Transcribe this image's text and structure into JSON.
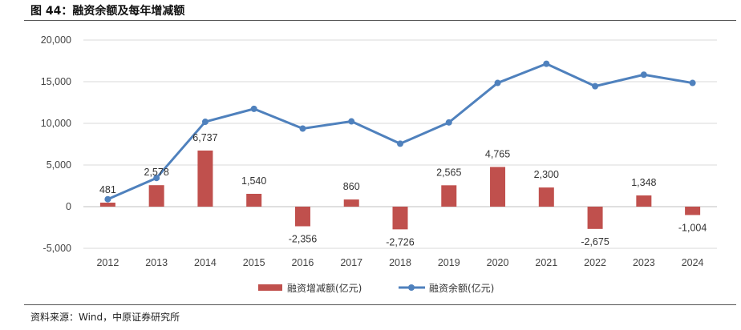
{
  "header": {
    "title": "图 44：融资余额及每年增减额"
  },
  "footer": {
    "source": "资料来源：Wind，中原证券研究所"
  },
  "colors": {
    "bar": "#c0504d",
    "line": "#4f81bd",
    "grid": "#d9d9d9",
    "axis": "#bfbfbf"
  },
  "chart_data": {
    "type": "bar+line",
    "categories": [
      "2012",
      "2013",
      "2014",
      "2015",
      "2016",
      "2017",
      "2018",
      "2019",
      "2020",
      "2021",
      "2022",
      "2023",
      "2024"
    ],
    "series": [
      {
        "name": "融资增减额(亿元)",
        "type": "bar",
        "values": [
          481,
          2578,
          6737,
          1540,
          -2356,
          860,
          -2726,
          2565,
          4765,
          2300,
          -2675,
          1348,
          -1004
        ],
        "labels": [
          "481",
          "2,578",
          "6,737",
          "1,540",
          "-2,356",
          "860",
          "-2,726",
          "2,565",
          "4,765",
          "2,300",
          "-2,675",
          "1,348",
          "-1,004"
        ]
      },
      {
        "name": "融资余额(亿元)",
        "type": "line",
        "values": [
          895,
          3443,
          10187,
          11743,
          9374,
          10236,
          7557,
          10110,
          14850,
          17150,
          14460,
          15840,
          14850
        ]
      }
    ],
    "yticks": [
      "20,000",
      "15,000",
      "10,000",
      "5,000",
      "0",
      "-5,000"
    ],
    "ylim": [
      -5000,
      20000
    ],
    "grid": true,
    "legend": "bottom"
  }
}
